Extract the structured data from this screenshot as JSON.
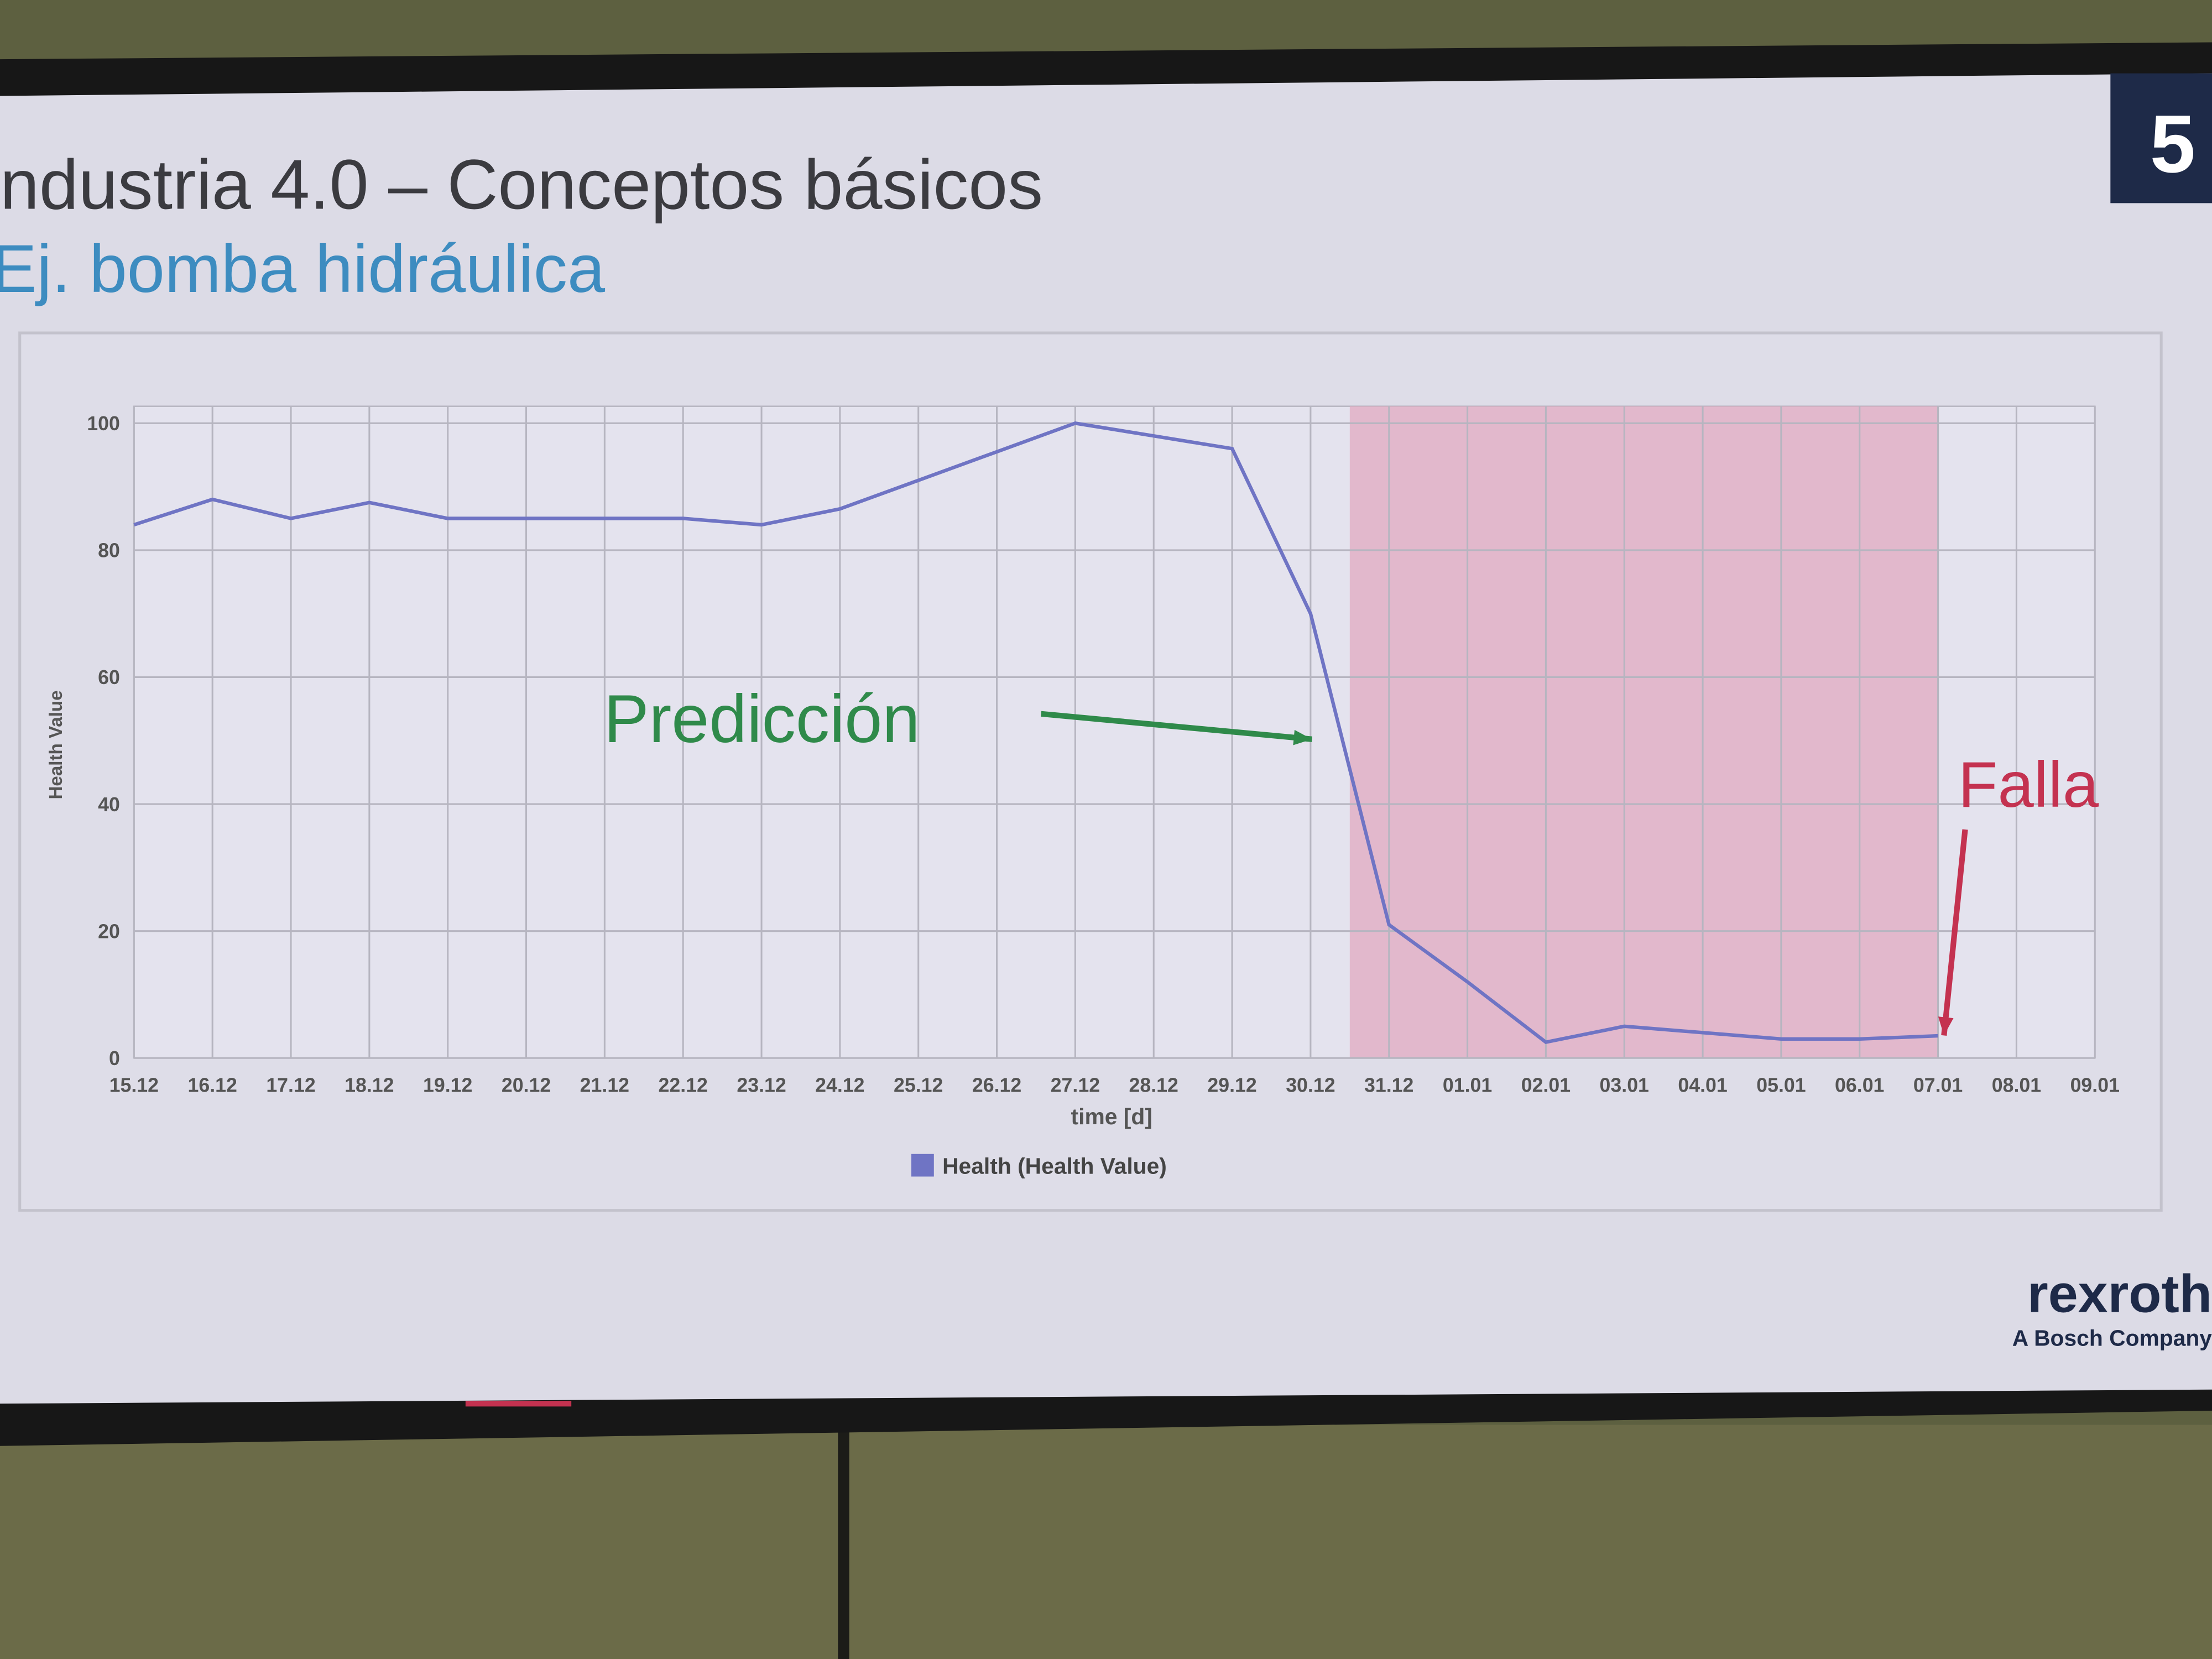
{
  "header": {
    "title": "ndustria 4.0 – Conceptos básicos",
    "subtitle": "Ej. bomba hidráulica",
    "page_number": "5"
  },
  "chart_data": {
    "type": "line",
    "categories": [
      "15.12",
      "16.12",
      "17.12",
      "18.12",
      "19.12",
      "20.12",
      "21.12",
      "22.12",
      "23.12",
      "24.12",
      "25.12",
      "26.12",
      "27.12",
      "28.12",
      "29.12",
      "30.12",
      "31.12",
      "01.01",
      "02.01",
      "03.01",
      "04.01",
      "05.01",
      "06.01",
      "07.01",
      "08.01",
      "09.01"
    ],
    "series": [
      {
        "name": "Health (Health Value)",
        "color": "#6f74c4",
        "values": [
          84,
          88,
          85,
          87.5,
          85,
          85,
          85,
          85,
          84,
          86.5,
          91,
          95.5,
          100,
          98,
          96,
          70,
          21,
          12,
          2.5,
          5,
          4,
          3,
          3,
          3.5,
          null,
          null
        ]
      }
    ],
    "x_label": "time [d]",
    "y_label": "Health Value",
    "ylim": [
      0,
      100
    ],
    "yticks": [
      0,
      20,
      40,
      60,
      80,
      100
    ],
    "grid": true,
    "shaded_region": {
      "from": "31.12",
      "to": "07.01",
      "color": "#e2a9c0"
    },
    "annotations": [
      {
        "text": "Predicción",
        "color": "#2f8a4a"
      },
      {
        "text": "Falla",
        "color": "#c43250"
      }
    ]
  },
  "footer": {
    "brand": "rexroth",
    "brand_subtitle": "A Bosch Company"
  }
}
